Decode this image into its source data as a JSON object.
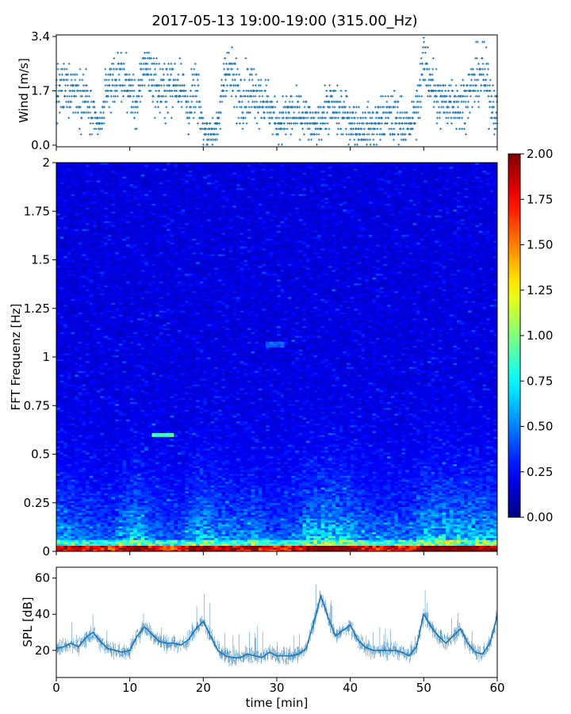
{
  "figure_title": "2017-05-13 19:00-19:00 (315.00_Hz)",
  "colors": {
    "series": "#1f77b4",
    "axis": "#000000",
    "background": "#ffffff"
  },
  "chart_data": [
    {
      "name": "wind",
      "type": "scatter",
      "ylabel": "Wind [m/s]",
      "xlabel": "",
      "xlim": [
        0,
        60
      ],
      "ylim": [
        -0.05,
        3.45
      ],
      "yticks": [
        0.0,
        1.7,
        3.4
      ],
      "ytick_labels": [
        "0.0",
        "1.7",
        "3.4"
      ],
      "xticks": [
        0,
        10,
        20,
        30,
        40,
        50,
        60
      ],
      "marker": "+",
      "sample_count": 1800,
      "envelope": {
        "t": [
          0,
          2,
          4,
          5,
          6,
          7,
          9,
          11,
          12,
          14,
          17,
          18,
          19,
          20,
          21,
          22,
          23,
          25,
          27,
          29,
          30,
          32,
          34,
          35,
          37,
          39,
          41,
          43,
          45,
          47,
          48,
          49,
          50,
          51,
          52,
          54,
          55,
          57,
          58,
          60
        ],
        "median": [
          1.6,
          1.8,
          1.5,
          0.8,
          0.6,
          1.9,
          2.2,
          1.2,
          2.6,
          1.7,
          2.0,
          1.0,
          1.8,
          0.5,
          0.4,
          0.5,
          2.5,
          1.6,
          1.7,
          1.2,
          0.7,
          1.0,
          0.8,
          0.5,
          1.2,
          1.0,
          0.6,
          0.6,
          0.9,
          0.8,
          0.5,
          1.1,
          2.6,
          2.0,
          1.3,
          1.4,
          1.2,
          2.0,
          2.3,
          0.9
        ],
        "spread": [
          0.6,
          0.5,
          0.6,
          0.4,
          0.3,
          0.5,
          0.5,
          0.5,
          0.5,
          0.6,
          0.5,
          0.5,
          0.6,
          0.3,
          0.3,
          0.3,
          0.6,
          0.6,
          0.6,
          0.5,
          0.4,
          0.5,
          0.5,
          0.3,
          0.5,
          0.5,
          0.4,
          0.4,
          0.5,
          0.5,
          0.3,
          0.5,
          0.6,
          0.6,
          0.6,
          0.5,
          0.5,
          0.6,
          0.6,
          0.5
        ]
      }
    },
    {
      "name": "spectrogram",
      "type": "heatmap",
      "ylabel": "FFT Frequenz [Hz]",
      "xlabel": "",
      "xlim": [
        0,
        60
      ],
      "ylim": [
        0,
        2
      ],
      "yticks": [
        0,
        0.25,
        0.5,
        0.75,
        1,
        1.25,
        1.5,
        1.75,
        2
      ],
      "ytick_labels": [
        "0",
        "0.25",
        "0.5",
        "0.75",
        "1",
        "1.25",
        "1.5",
        "1.75",
        "2"
      ],
      "xticks": [
        0,
        10,
        20,
        30,
        40,
        50,
        60
      ],
      "colormap": "jet",
      "colorbar": {
        "vmin": 0.0,
        "vmax": 2.0,
        "ticks": [
          0.0,
          0.25,
          0.5,
          0.75,
          1.0,
          1.25,
          1.5,
          1.75,
          2.0
        ],
        "tick_labels": [
          "0.00",
          "0.25",
          "0.50",
          "0.75",
          "1.00",
          "1.25",
          "1.50",
          "1.75",
          "2.00"
        ]
      },
      "time_bins": 120,
      "freq_bins": 200,
      "activity": {
        "t": [
          0,
          2,
          4,
          5,
          7,
          8,
          9,
          10,
          11,
          12,
          13,
          14,
          15,
          17,
          18,
          19,
          20,
          21,
          22,
          24,
          26,
          27,
          28,
          30,
          32,
          33,
          34,
          36,
          38,
          40,
          42,
          44,
          46,
          48,
          49,
          50,
          52,
          54,
          56,
          58,
          60
        ],
        "level": [
          0.75,
          0.65,
          0.6,
          0.55,
          0.45,
          0.5,
          0.7,
          0.85,
          0.95,
          0.75,
          0.6,
          0.55,
          0.45,
          0.5,
          0.65,
          0.85,
          0.95,
          0.75,
          0.7,
          0.65,
          0.6,
          0.8,
          0.55,
          0.5,
          0.55,
          0.6,
          0.9,
          1.0,
          0.95,
          0.85,
          0.65,
          0.55,
          0.6,
          0.55,
          0.65,
          0.9,
          0.95,
          1.0,
          0.9,
          0.85,
          0.8
        ]
      },
      "features": [
        {
          "t0": 13.0,
          "t1": 16.0,
          "f": 0.6,
          "value": 1.0
        },
        {
          "t0": 28.5,
          "t1": 31.0,
          "f": 1.06,
          "value": 0.55
        }
      ]
    },
    {
      "name": "spl",
      "type": "line",
      "ylabel": "SPL [dB]",
      "xlabel": "time [min]",
      "xlim": [
        0,
        60
      ],
      "ylim": [
        5,
        66
      ],
      "yticks": [
        20,
        40,
        60
      ],
      "ytick_labels": [
        "20",
        "40",
        "60"
      ],
      "xticks": [
        0,
        10,
        20,
        30,
        40,
        50,
        60
      ],
      "xtick_labels": [
        "0",
        "10",
        "20",
        "30",
        "40",
        "50",
        "60"
      ],
      "x": [
        0,
        1,
        2,
        3,
        4,
        5,
        6,
        7,
        8,
        9,
        10,
        11,
        12,
        13,
        14,
        15,
        16,
        17,
        18,
        19,
        20,
        21,
        22,
        23,
        24,
        25,
        26,
        27,
        28,
        29,
        30,
        31,
        32,
        33,
        34,
        35,
        36,
        37,
        38,
        39,
        40,
        41,
        42,
        43,
        44,
        45,
        46,
        47,
        48,
        49,
        50,
        51,
        52,
        53,
        54,
        55,
        56,
        57,
        58,
        59,
        60
      ],
      "y": [
        21,
        22,
        24,
        22,
        27,
        30,
        25,
        21,
        20,
        19,
        20,
        28,
        33,
        29,
        25,
        24,
        24,
        23,
        26,
        32,
        36,
        28,
        20,
        17,
        16,
        16,
        18,
        17,
        16,
        19,
        17,
        17,
        17,
        18,
        21,
        35,
        50,
        38,
        28,
        31,
        34,
        26,
        22,
        20,
        20,
        20,
        20,
        19,
        17,
        22,
        40,
        33,
        28,
        24,
        28,
        32,
        24,
        19,
        18,
        24,
        39
      ]
    }
  ]
}
